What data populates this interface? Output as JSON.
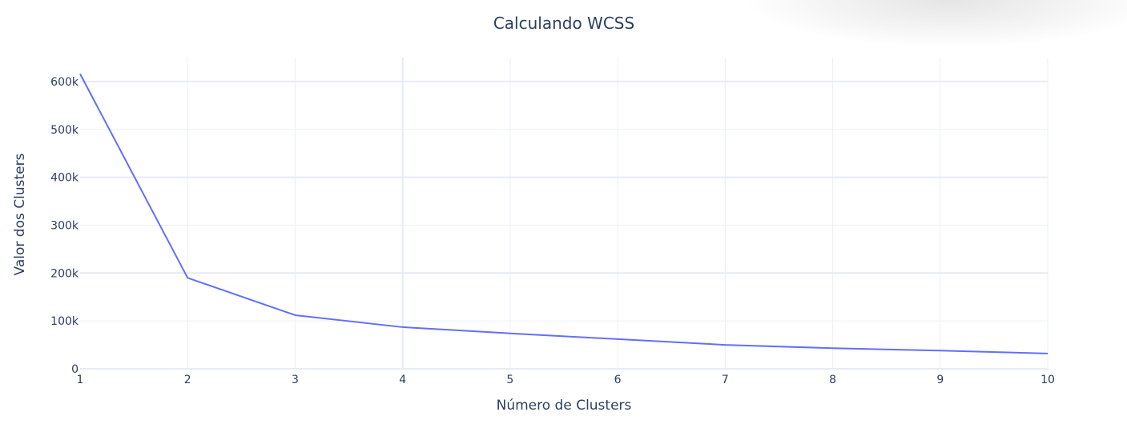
{
  "chart_data": {
    "type": "line",
    "title": "Calculando WCSS",
    "xlabel": "Número de Clusters",
    "ylabel": "Valor dos Clusters",
    "x": [
      1,
      2,
      3,
      4,
      5,
      6,
      7,
      8,
      9,
      10
    ],
    "series": [
      {
        "values": [
          616000,
          190000,
          112000,
          87000,
          74000,
          62000,
          50000,
          43000,
          38000,
          32000
        ],
        "color": "#636efa"
      }
    ],
    "xlim": [
      1,
      10
    ],
    "ylim": [
      0,
      650000
    ],
    "xticks": [
      1,
      2,
      3,
      4,
      5,
      6,
      7,
      8,
      9,
      10
    ],
    "xtick_labels": [
      "1",
      "2",
      "3",
      "4",
      "5",
      "6",
      "7",
      "8",
      "9",
      "10"
    ],
    "yticks": [
      0,
      100000,
      200000,
      300000,
      400000,
      500000,
      600000
    ],
    "ytick_labels": [
      "0",
      "100k",
      "200k",
      "300k",
      "400k",
      "500k",
      "600k"
    ],
    "grid": true,
    "legend": false
  }
}
